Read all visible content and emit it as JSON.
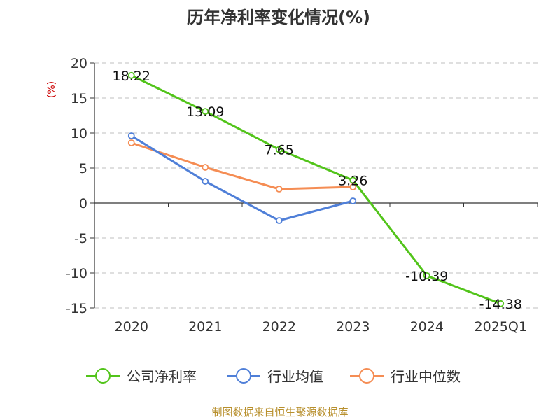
{
  "chart_data": {
    "type": "line",
    "title": "历年净利率变化情况(%)",
    "ylabel": "(%)",
    "categories": [
      "2020",
      "2021",
      "2022",
      "2023",
      "2024",
      "2025Q1"
    ],
    "ylim": [
      -15,
      20
    ],
    "yticks": [
      20,
      15,
      10,
      5,
      0,
      -5,
      -10,
      -15
    ],
    "grid": true,
    "legend_position": "bottom",
    "series": [
      {
        "name": "公司净利率",
        "color": "#52c41a",
        "values": [
          18.22,
          13.09,
          7.65,
          3.26,
          -10.39,
          -14.38
        ],
        "labels": [
          "18.22",
          "13.09",
          "7.65",
          "3.26",
          "-10.39",
          "-14.38"
        ]
      },
      {
        "name": "行业均值",
        "color": "#4f7fd8",
        "values": [
          9.6,
          3.1,
          -2.5,
          0.3,
          null,
          null
        ]
      },
      {
        "name": "行业中位数",
        "color": "#f58d54",
        "values": [
          8.6,
          5.1,
          2.0,
          2.3,
          null,
          null
        ]
      }
    ]
  },
  "source": "制图数据来自恒生聚源数据库"
}
